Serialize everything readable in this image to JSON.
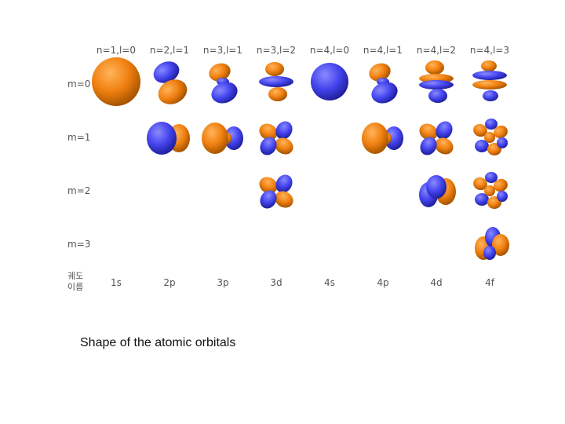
{
  "columns": [
    {
      "key": "1s",
      "header": "n=1,l=0",
      "name": "1s"
    },
    {
      "key": "2p",
      "header": "n=2,l=1",
      "name": "2p"
    },
    {
      "key": "3p",
      "header": "n=3,l=1",
      "name": "3p"
    },
    {
      "key": "3d",
      "header": "n=3,l=2",
      "name": "3d"
    },
    {
      "key": "4s",
      "header": "n=4,l=0",
      "name": "4s"
    },
    {
      "key": "4p",
      "header": "n=4,l=1",
      "name": "4p"
    },
    {
      "key": "4d",
      "header": "n=4,l=2",
      "name": "4d"
    },
    {
      "key": "4f",
      "header": "n=4,l=3",
      "name": "4f"
    }
  ],
  "rows": [
    {
      "label": "m=0"
    },
    {
      "label": "m=1"
    },
    {
      "label": "m=2"
    },
    {
      "label": "m=3"
    }
  ],
  "name_row_label_line1": "궤도",
  "name_row_label_line2": "이름",
  "caption": "Shape of the atomic orbitals",
  "colors": {
    "positive_lobe": "#f08010",
    "negative_lobe": "#4040ee",
    "label_text": "#555555"
  },
  "orbital_cells": [
    {
      "row": 0,
      "col": "1s",
      "shape": "s-sphere-orange"
    },
    {
      "row": 0,
      "col": "2p",
      "shape": "p-vertical"
    },
    {
      "row": 0,
      "col": "3p",
      "shape": "p-vertical-noded"
    },
    {
      "row": 0,
      "col": "3d",
      "shape": "d-z2"
    },
    {
      "row": 0,
      "col": "4s",
      "shape": "s-sphere-blue"
    },
    {
      "row": 0,
      "col": "4p",
      "shape": "p-vertical-noded"
    },
    {
      "row": 0,
      "col": "4d",
      "shape": "d-z2-ringed"
    },
    {
      "row": 0,
      "col": "4f",
      "shape": "f-z3"
    },
    {
      "row": 1,
      "col": "2p",
      "shape": "p-horizontal"
    },
    {
      "row": 1,
      "col": "3p",
      "shape": "p-horizontal-noded"
    },
    {
      "row": 1,
      "col": "3d",
      "shape": "d-clover"
    },
    {
      "row": 1,
      "col": "4p",
      "shape": "p-horizontal-noded"
    },
    {
      "row": 1,
      "col": "4d",
      "shape": "d-clover"
    },
    {
      "row": 1,
      "col": "4f",
      "shape": "f-multi"
    },
    {
      "row": 2,
      "col": "3d",
      "shape": "d-clover"
    },
    {
      "row": 2,
      "col": "4d",
      "shape": "d-clover-large"
    },
    {
      "row": 2,
      "col": "4f",
      "shape": "f-multi"
    },
    {
      "row": 3,
      "col": "4f",
      "shape": "f-clover"
    }
  ]
}
